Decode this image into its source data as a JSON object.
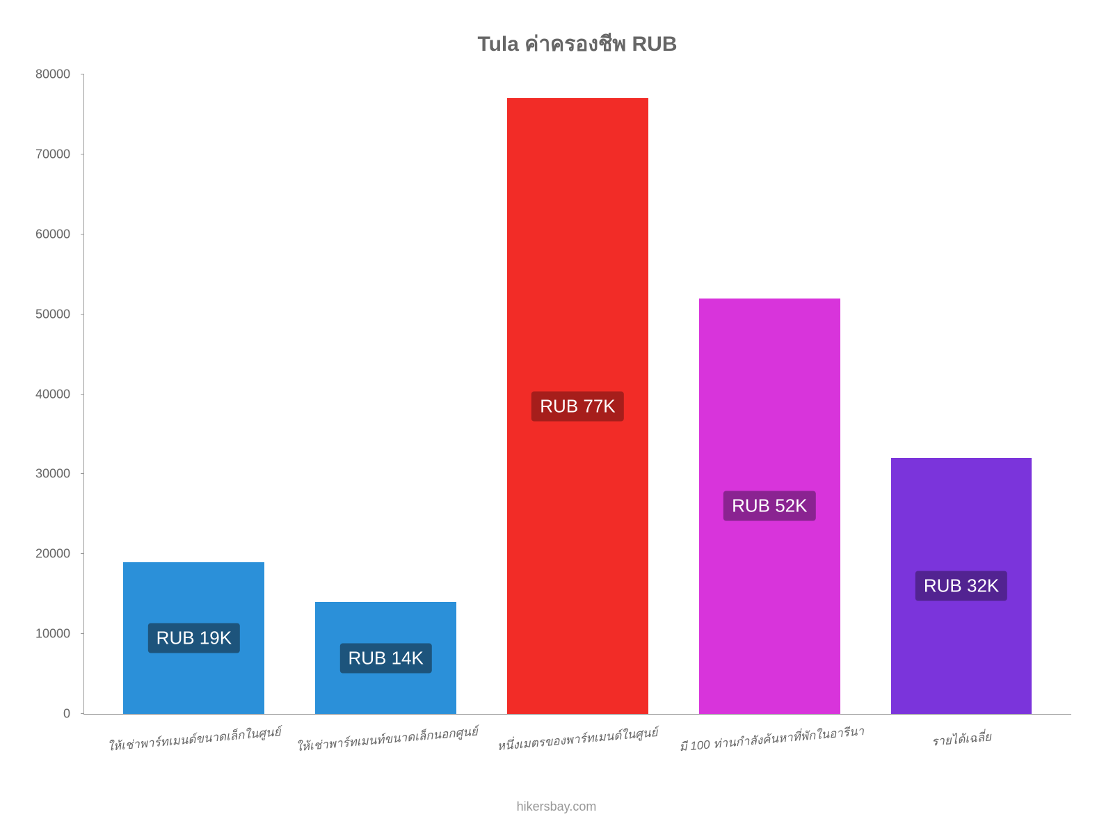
{
  "chart": {
    "type": "bar",
    "title": "Tula ค่าครองชีพ RUB",
    "title_color": "#666666",
    "title_fontsize": 30,
    "background_color": "#ffffff",
    "axis_color": "#999999",
    "label_color": "#666666",
    "ylim": [
      0,
      80000
    ],
    "ytick_step": 10000,
    "yticks": [
      {
        "value": 0,
        "label": "0"
      },
      {
        "value": 10000,
        "label": "10000"
      },
      {
        "value": 20000,
        "label": "20000"
      },
      {
        "value": 30000,
        "label": "30000"
      },
      {
        "value": 40000,
        "label": "40000"
      },
      {
        "value": 50000,
        "label": "50000"
      },
      {
        "value": 60000,
        "label": "60000"
      },
      {
        "value": 70000,
        "label": "70000"
      },
      {
        "value": 80000,
        "label": "80000"
      }
    ],
    "bars": [
      {
        "category": "ให้เช่าพาร์ทเมนด์ขนาดเล็กในศูนย์",
        "value": 19000,
        "display_label": "RUB 19K",
        "bar_color": "#2b90d9",
        "label_bg_color": "#1d547c",
        "label_text_color": "#ffffff"
      },
      {
        "category": "ให้เช่าพาร์ทเมนท์ขนาดเล็กนอกศูนย์",
        "value": 14000,
        "display_label": "RUB 14K",
        "bar_color": "#2b90d9",
        "label_bg_color": "#1d547c",
        "label_text_color": "#ffffff"
      },
      {
        "category": "หนึ่งเมตรของพาร์ทเมนด์ในศูนย์",
        "value": 77000,
        "display_label": "RUB 77K",
        "bar_color": "#f22c27",
        "label_bg_color": "#a61e1b",
        "label_text_color": "#ffffff"
      },
      {
        "category": "มี 100 ท่านกำลังค้นหาที่พักในอารีนา",
        "value": 52000,
        "display_label": "RUB 52K",
        "bar_color": "#d834db",
        "label_bg_color": "#8a2391",
        "label_text_color": "#ffffff"
      },
      {
        "category": "รายได้เฉลี่ย",
        "value": 32000,
        "display_label": "RUB 32K",
        "bar_color": "#7b34db",
        "label_bg_color": "#522391",
        "label_text_color": "#ffffff"
      }
    ],
    "bar_width_ratio": 0.78,
    "x_label_fontsize": 17,
    "x_label_rotation": -5,
    "y_label_fontsize": 18,
    "bar_label_fontsize": 26,
    "footer": "hikersbay.com",
    "footer_color": "#999999"
  }
}
